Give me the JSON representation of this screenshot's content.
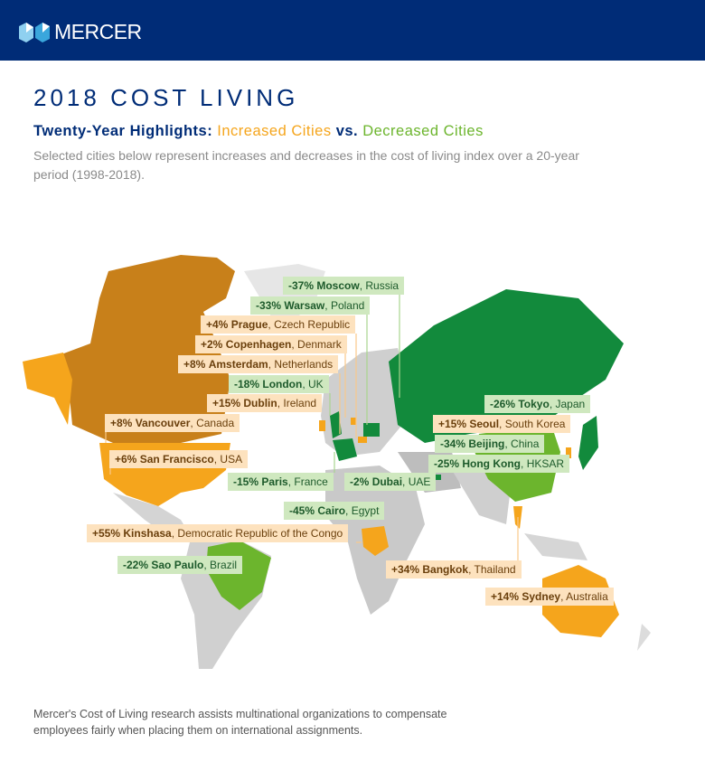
{
  "brand": "MERCER",
  "title": "2018 COST LIVING",
  "subtitle": {
    "prefix": "Twenty-Year Highlights: ",
    "increased": "Increased Cities",
    "mid": " vs. ",
    "decreased": "Decreased Cities"
  },
  "description": "Selected cities below represent increases and decreases in the cost of living index over a 20-year period (1998-2018).",
  "colors": {
    "header": "#002c77",
    "increase": "#f5a51c",
    "increase_dark": "#c8801a",
    "decrease": "#6cb52d",
    "decrease_dark": "#128a3c",
    "land": "#d9d9d9"
  },
  "cities": [
    {
      "change": "-37%",
      "city": "Moscow",
      "country": "Russia",
      "type": "down"
    },
    {
      "change": "-33%",
      "city": "Warsaw",
      "country": "Poland",
      "type": "down"
    },
    {
      "change": "+4%",
      "city": "Prague",
      "country": "Czech Republic",
      "type": "up"
    },
    {
      "change": "+2%",
      "city": "Copenhagen",
      "country": "Denmark",
      "type": "up"
    },
    {
      "change": "+8%",
      "city": "Amsterdam",
      "country": "Netherlands",
      "type": "up"
    },
    {
      "change": "-18%",
      "city": "London",
      "country": "UK",
      "type": "down"
    },
    {
      "change": "+15%",
      "city": "Dublin",
      "country": "Ireland",
      "type": "up"
    },
    {
      "change": "+8%",
      "city": "Vancouver",
      "country": "Canada",
      "type": "up"
    },
    {
      "change": "+6%",
      "city": "San Francisco",
      "country": "USA",
      "type": "up"
    },
    {
      "change": "-15%",
      "city": "Paris",
      "country": "France",
      "type": "down"
    },
    {
      "change": "-2%",
      "city": "Dubai",
      "country": "UAE",
      "type": "down"
    },
    {
      "change": "-45%",
      "city": "Cairo",
      "country": "Egypt",
      "type": "down"
    },
    {
      "change": "+55%",
      "city": "Kinshasa",
      "country": "Democratic Republic of the Congo",
      "type": "up"
    },
    {
      "change": "-22%",
      "city": "Sao Paulo",
      "country": "Brazil",
      "type": "down"
    },
    {
      "change": "+34%",
      "city": "Bangkok",
      "country": "Thailand",
      "type": "up"
    },
    {
      "change": "+14%",
      "city": "Sydney",
      "country": "Australia",
      "type": "up"
    },
    {
      "change": "-26%",
      "city": "Tokyo",
      "country": "Japan",
      "type": "down"
    },
    {
      "change": "+15%",
      "city": "Seoul",
      "country": "South Korea",
      "type": "up"
    },
    {
      "change": "-34%",
      "city": "Beijing",
      "country": "China",
      "type": "down"
    },
    {
      "change": "-25%",
      "city": "Hong Kong",
      "country": "HKSAR",
      "type": "down"
    }
  ],
  "footer": "Mercer's Cost of Living research assists multinational organizations to compensate employees fairly when placing them on international assignments."
}
